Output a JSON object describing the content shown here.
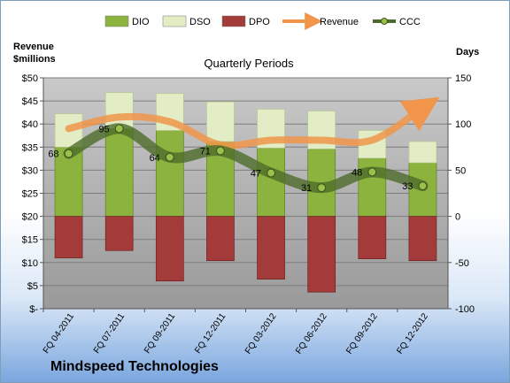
{
  "chart_data": {
    "type": "bar",
    "title": "Quarterly Periods",
    "company": "Mindspeed Technologies",
    "left_axis_label_line1": "Revenue",
    "left_axis_label_line2": "$millions",
    "right_axis_label": "Days",
    "left_ylim": [
      0,
      50
    ],
    "right_ylim": [
      -100,
      150
    ],
    "left_ticks": [
      "$-",
      "$5",
      "$10",
      "$15",
      "$20",
      "$25",
      "$30",
      "$35",
      "$40",
      "$45",
      "$50"
    ],
    "right_ticks": [
      "-100",
      "-50",
      "0",
      "50",
      "100",
      "150"
    ],
    "categories": [
      "FQ 04-2011",
      "FQ 07-2011",
      "FQ 09-2011",
      "FQ 12-2011",
      "FQ 03-2012",
      "FQ 06-2012",
      "FQ 09-2012",
      "FQ 12-2012"
    ],
    "grid": true,
    "legend_position": "top",
    "series": [
      {
        "name": "DIO",
        "axis": "right",
        "kind": "stacked-bar",
        "color": "#8db33f",
        "values": [
          75,
          95,
          93,
          81,
          74,
          73,
          63,
          58
        ]
      },
      {
        "name": "DSO",
        "axis": "right",
        "kind": "stacked-bar",
        "color": "#e2edc6",
        "values": [
          36,
          39,
          40,
          43,
          42,
          41,
          30,
          23
        ]
      },
      {
        "name": "DPO",
        "axis": "right",
        "kind": "negative-bar",
        "color": "#a33b3b",
        "values": [
          -45,
          -37,
          -70,
          -48,
          -68,
          -82,
          -46,
          -48
        ]
      },
      {
        "name": "Revenue",
        "axis": "left",
        "kind": "line",
        "color": "#f0954a",
        "values": [
          39,
          41.5,
          40.5,
          35.5,
          36.5,
          36.5,
          36.5,
          43.5
        ]
      },
      {
        "name": "CCC",
        "axis": "right",
        "kind": "line",
        "color": "#4d6b2a",
        "values": [
          68,
          95,
          64,
          71,
          47,
          31,
          48,
          33
        ],
        "labels": [
          "68",
          "95",
          "64",
          "71",
          "47",
          "31",
          "48",
          "33"
        ]
      }
    ]
  }
}
